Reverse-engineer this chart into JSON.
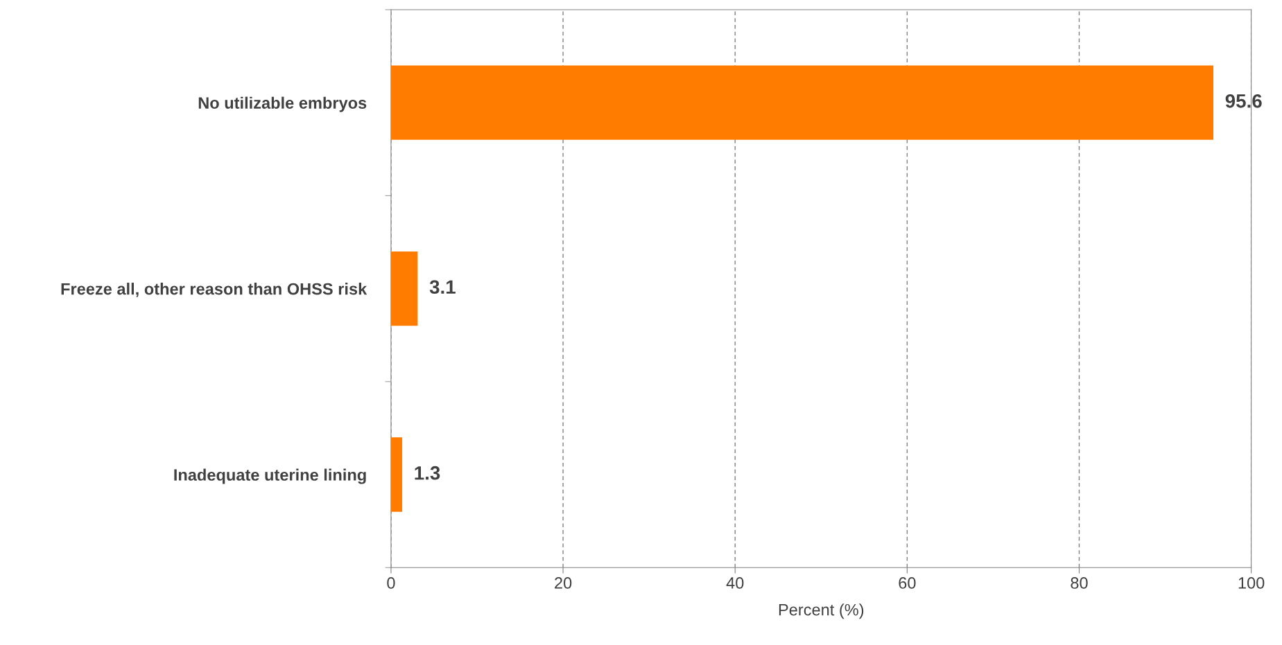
{
  "chart_data": {
    "type": "bar",
    "orientation": "horizontal",
    "xlabel": "Percent (%)",
    "categories": [
      "No utilizable embryos",
      "Freeze all, other reason than OHSS risk",
      "Inadequate uterine lining"
    ],
    "values": [
      95.6,
      3.1,
      1.3
    ],
    "color": "#ff7c00",
    "xlim": [
      0,
      100
    ],
    "xticks": [
      0,
      20,
      40,
      60,
      80,
      100
    ],
    "grid": "x",
    "data_labels": true
  }
}
